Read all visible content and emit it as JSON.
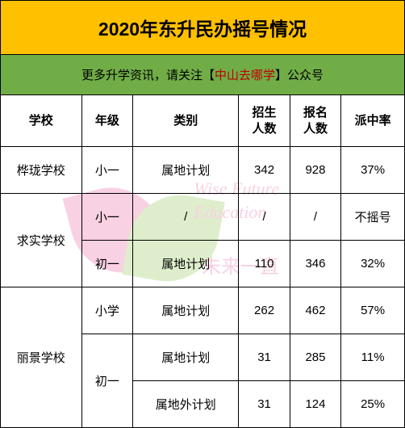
{
  "title": "2020年东升民办摇号情况",
  "subtitle_prefix": "更多升学资讯，请关注【",
  "subtitle_highlight": "中山去哪学",
  "subtitle_suffix": "】公众号",
  "watermark": {
    "line1": "Wise Future",
    "line2": "Education",
    "line3": "未来一直"
  },
  "table": {
    "headers": {
      "school": "学校",
      "grade": "年级",
      "type": "类别",
      "enroll": "招生人数",
      "apply": "报名人数",
      "rate": "派中率"
    },
    "rows": [
      {
        "school": "桦珑学校",
        "grade": "小一",
        "type": "属地计划",
        "enroll": "342",
        "apply": "928",
        "rate": "37%"
      },
      {
        "school": "求实学校",
        "grade": "小一",
        "type": "/",
        "enroll": "/",
        "apply": "/",
        "rate": "不摇号"
      },
      {
        "school": "",
        "grade": "初一",
        "type": "属地计划",
        "enroll": "110",
        "apply": "346",
        "rate": "32%"
      },
      {
        "school": "丽景学校",
        "grade": "小学",
        "type": "属地计划",
        "enroll": "262",
        "apply": "462",
        "rate": "57%"
      },
      {
        "school": "",
        "grade": "初一",
        "type": "属地计划",
        "enroll": "31",
        "apply": "285",
        "rate": "11%"
      },
      {
        "school": "",
        "grade": "",
        "type": "属地外计划",
        "enroll": "31",
        "apply": "124",
        "rate": "25%"
      }
    ]
  },
  "colors": {
    "title_bg": "#ffc000",
    "subtitle_bg": "#70ad47",
    "highlight": "#c00000",
    "border": "#000000"
  }
}
